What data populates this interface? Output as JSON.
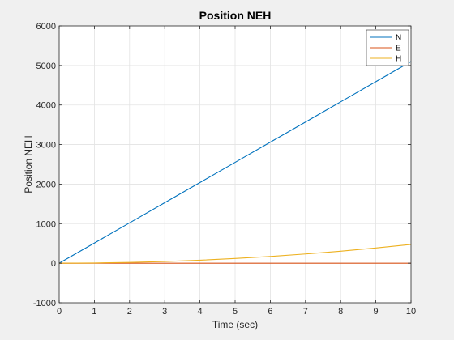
{
  "chart_data": {
    "type": "line",
    "title": "Position NEH",
    "xlabel": "Time (sec)",
    "ylabel": "Position NEH",
    "xlim": [
      0,
      10
    ],
    "ylim": [
      -1000,
      6000
    ],
    "xticks": [
      0,
      1,
      2,
      3,
      4,
      5,
      6,
      7,
      8,
      9,
      10
    ],
    "yticks": [
      -1000,
      0,
      1000,
      2000,
      3000,
      4000,
      5000,
      6000
    ],
    "grid": true,
    "legend_position": "top-right",
    "x": [
      0,
      1,
      2,
      3,
      4,
      5,
      6,
      7,
      8,
      9,
      10
    ],
    "series": [
      {
        "name": "N",
        "color": "#0072BD",
        "values": [
          0,
          510,
          1020,
          1530,
          2040,
          2550,
          3060,
          3570,
          4080,
          4590,
          5100
        ]
      },
      {
        "name": "E",
        "color": "#D95319",
        "values": [
          0,
          0,
          0,
          0,
          0,
          0,
          0,
          0,
          0,
          0,
          0
        ]
      },
      {
        "name": "H",
        "color": "#EDB120",
        "values": [
          0,
          5,
          19,
          43,
          76,
          119,
          171,
          233,
          304,
          385,
          475
        ]
      }
    ]
  }
}
